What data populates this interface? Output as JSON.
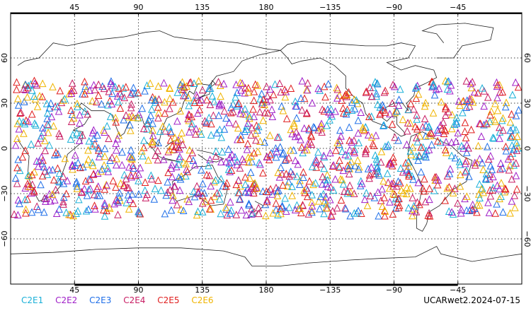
{
  "map": {
    "lon_range": [
      0,
      360
    ],
    "lat_range": [
      -90,
      90
    ],
    "top_ticks": [
      {
        "lon": 45,
        "label": "45"
      },
      {
        "lon": 90,
        "label": "90"
      },
      {
        "lon": 135,
        "label": "135"
      },
      {
        "lon": 180,
        "label": "180"
      },
      {
        "lon": 225,
        "label": "−135"
      },
      {
        "lon": 270,
        "label": "−90"
      },
      {
        "lon": 315,
        "label": "−45"
      }
    ],
    "bottom_ticks": [
      {
        "lon": 45,
        "label": "45"
      },
      {
        "lon": 90,
        "label": "90"
      },
      {
        "lon": 135,
        "label": "135"
      },
      {
        "lon": 180,
        "label": "180"
      },
      {
        "lon": 225,
        "label": "−135"
      },
      {
        "lon": 270,
        "label": "−90"
      },
      {
        "lon": 315,
        "label": "−45"
      }
    ],
    "left_ticks": [
      {
        "lat": 60,
        "label": "60"
      },
      {
        "lat": 30,
        "label": "30"
      },
      {
        "lat": 0,
        "label": "0"
      },
      {
        "lat": -30,
        "label": "−30"
      },
      {
        "lat": -60,
        "label": "−60"
      }
    ],
    "right_ticks": [
      {
        "lat": 60,
        "label": "60"
      },
      {
        "lat": 30,
        "label": "30"
      },
      {
        "lat": 0,
        "label": "0"
      },
      {
        "lat": -30,
        "label": "−30"
      },
      {
        "lat": -60,
        "label": "−60"
      }
    ],
    "observation_lat_band": [
      -45,
      45
    ],
    "marker_shape": "triangle-outline"
  },
  "legend": {
    "items": [
      {
        "label": "C2E1",
        "color": "#1ab0d8"
      },
      {
        "label": "C2E2",
        "color": "#a020c8"
      },
      {
        "label": "C2E3",
        "color": "#1e6ee8"
      },
      {
        "label": "C2E4",
        "color": "#c81e64"
      },
      {
        "label": "C2E5",
        "color": "#e01e1e"
      },
      {
        "label": "C2E6",
        "color": "#f0b400"
      }
    ]
  },
  "credit": "UCARwet2.2024-07-15"
}
